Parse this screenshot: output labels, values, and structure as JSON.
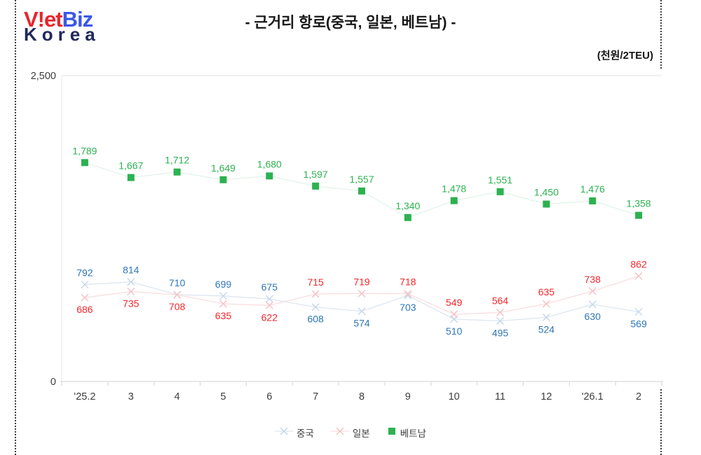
{
  "page": {
    "title": "- 근거리 항로(중국, 일본, 베트남) -",
    "unit_label": "(천원/2TEU)",
    "logo": {
      "viet": "V!et",
      "biz": "Biz",
      "korea": "Korea"
    }
  },
  "colors": {
    "axis_line": "#d9d9d9",
    "gridline": "#ececec",
    "axis_text": "#3d3d3d",
    "title_text": "#161616",
    "logo_red": "#e8252b",
    "logo_blue": "#3a57e8",
    "logo_navy": "#20295c"
  },
  "chart_data": {
    "type": "line",
    "title": "근거리 항로(중국, 일본, 베트남)",
    "unit": "천원/2TEU",
    "categories": [
      "'25.2",
      "3",
      "4",
      "5",
      "6",
      "7",
      "8",
      "9",
      "10",
      "11",
      "12",
      "'26.1",
      "2"
    ],
    "y_axis": {
      "min": 0,
      "max": 2500,
      "tick_labels": {
        "top": "2,500",
        "bottom": "0"
      }
    },
    "grid": "top-line-only",
    "legend_position": "bottom-center",
    "series": [
      {
        "key": "china",
        "name": "중국",
        "values": [
          792,
          814,
          710,
          699,
          675,
          608,
          574,
          703,
          510,
          495,
          524,
          630,
          569
        ],
        "marker": "x",
        "label_color": "#2e75b6",
        "line_color": "#dde6f0",
        "marker_color": "#c7d6e8",
        "label_side": [
          "above",
          "above",
          "above",
          "above",
          "above",
          "below",
          "below",
          "below",
          "below",
          "below",
          "below",
          "below",
          "below"
        ]
      },
      {
        "key": "japan",
        "name": "일본",
        "values": [
          686,
          735,
          708,
          635,
          622,
          715,
          719,
          718,
          549,
          564,
          635,
          738,
          862
        ],
        "marker": "x",
        "label_color": "#f5262c",
        "line_color": "#fadde0",
        "marker_color": "#f3c2c6",
        "label_side": [
          "below",
          "below",
          "below",
          "below",
          "below",
          "above",
          "above",
          "above",
          "above",
          "above",
          "above",
          "above",
          "above"
        ]
      },
      {
        "key": "vietnam",
        "name": "베트남",
        "values": [
          1789,
          1667,
          1712,
          1649,
          1680,
          1597,
          1557,
          1340,
          1478,
          1551,
          1450,
          1476,
          1358
        ],
        "marker": "square",
        "label_color": "#2db151",
        "line_color": "#e2f3e8",
        "marker_color": "#2db151",
        "label_side": [
          "above",
          "above",
          "above",
          "above",
          "above",
          "above",
          "above",
          "above",
          "above",
          "above",
          "above",
          "above",
          "above"
        ]
      }
    ]
  }
}
